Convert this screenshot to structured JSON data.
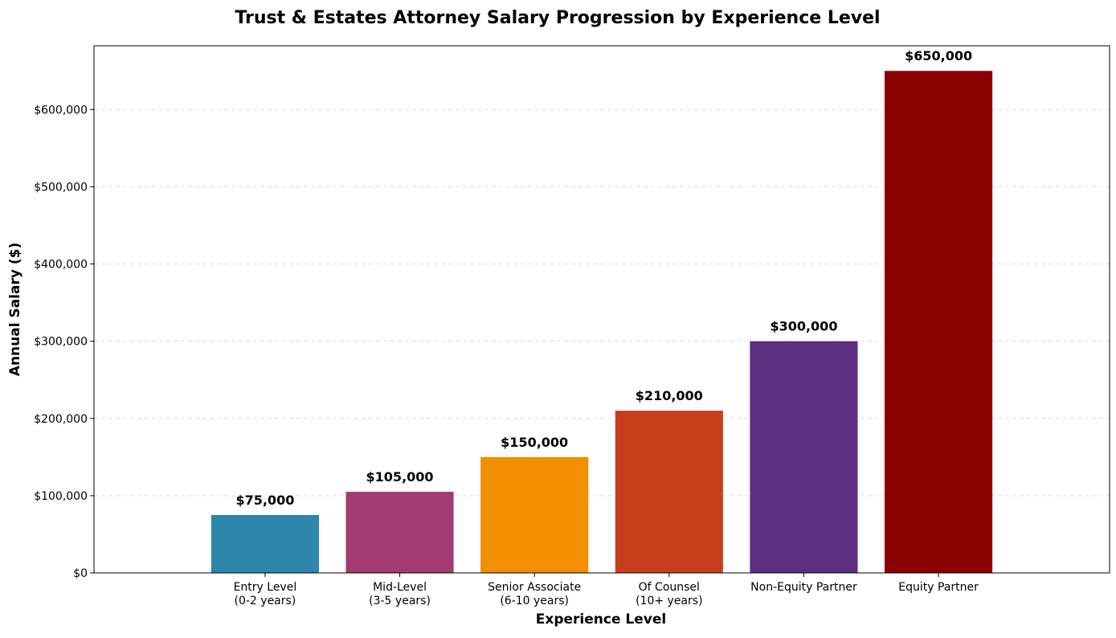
{
  "chart_data": {
    "type": "bar",
    "title": "Trust & Estates Attorney Salary Progression by Experience Level",
    "xlabel": "Experience Level",
    "ylabel": "Annual Salary ($)",
    "categories": [
      [
        "Entry Level",
        "(0-2 years)"
      ],
      [
        "Mid-Level",
        "(3-5 years)"
      ],
      [
        "Senior Associate",
        "(6-10 years)"
      ],
      [
        "Of Counsel",
        "(10+ years)"
      ],
      [
        "Non-Equity Partner"
      ],
      [
        "Equity Partner"
      ]
    ],
    "values": [
      75000,
      105000,
      150000,
      210000,
      300000,
      650000
    ],
    "data_labels": [
      "$75,000",
      "$105,000",
      "$150,000",
      "$210,000",
      "$300,000",
      "$650,000"
    ],
    "colors": [
      "#2E86AB",
      "#A23B72",
      "#F18F01",
      "#C73E1D",
      "#5C2E82",
      "#8B0000"
    ],
    "ylim": [
      0,
      682500
    ],
    "yticks": [
      0,
      100000,
      200000,
      300000,
      400000,
      500000,
      600000
    ],
    "ytick_labels": [
      "$0",
      "$100,000",
      "$200,000",
      "$300,000",
      "$400,000",
      "$500,000",
      "$600,000"
    ],
    "grid": true,
    "grid_axis": "y",
    "legend": false
  }
}
